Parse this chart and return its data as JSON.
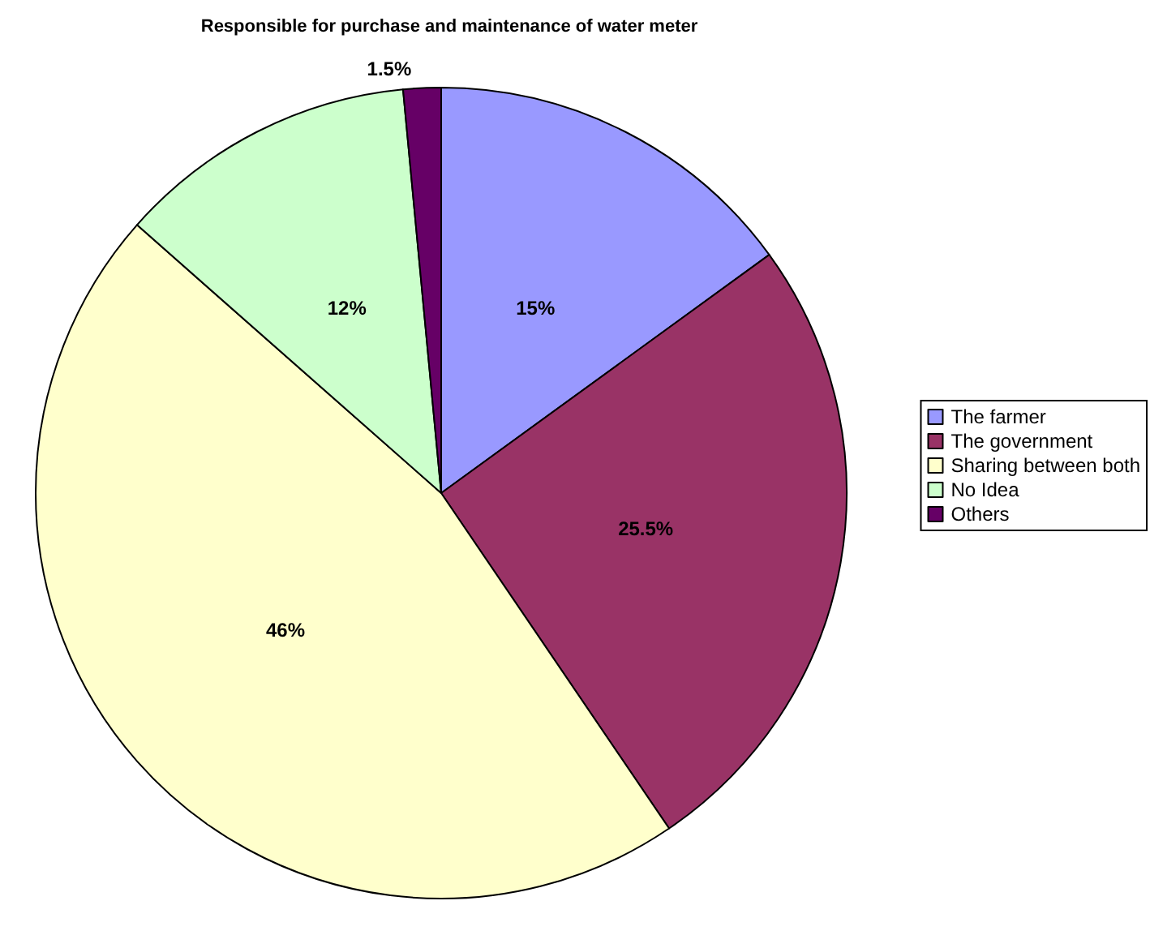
{
  "chart_data": {
    "type": "pie",
    "title": "Responsible for purchase and maintenance of water meter",
    "categories": [
      "The farmer",
      "The government",
      "Sharing between both",
      "No Idea",
      "Others"
    ],
    "values": [
      15,
      25.5,
      46,
      12,
      1.5
    ],
    "value_labels": [
      "15%",
      "25.5%",
      "46%",
      "12%",
      "1.5%"
    ],
    "colors": [
      "#9999ff",
      "#993366",
      "#ffffcc",
      "#ccffcc",
      "#660066"
    ],
    "legend": "right"
  }
}
